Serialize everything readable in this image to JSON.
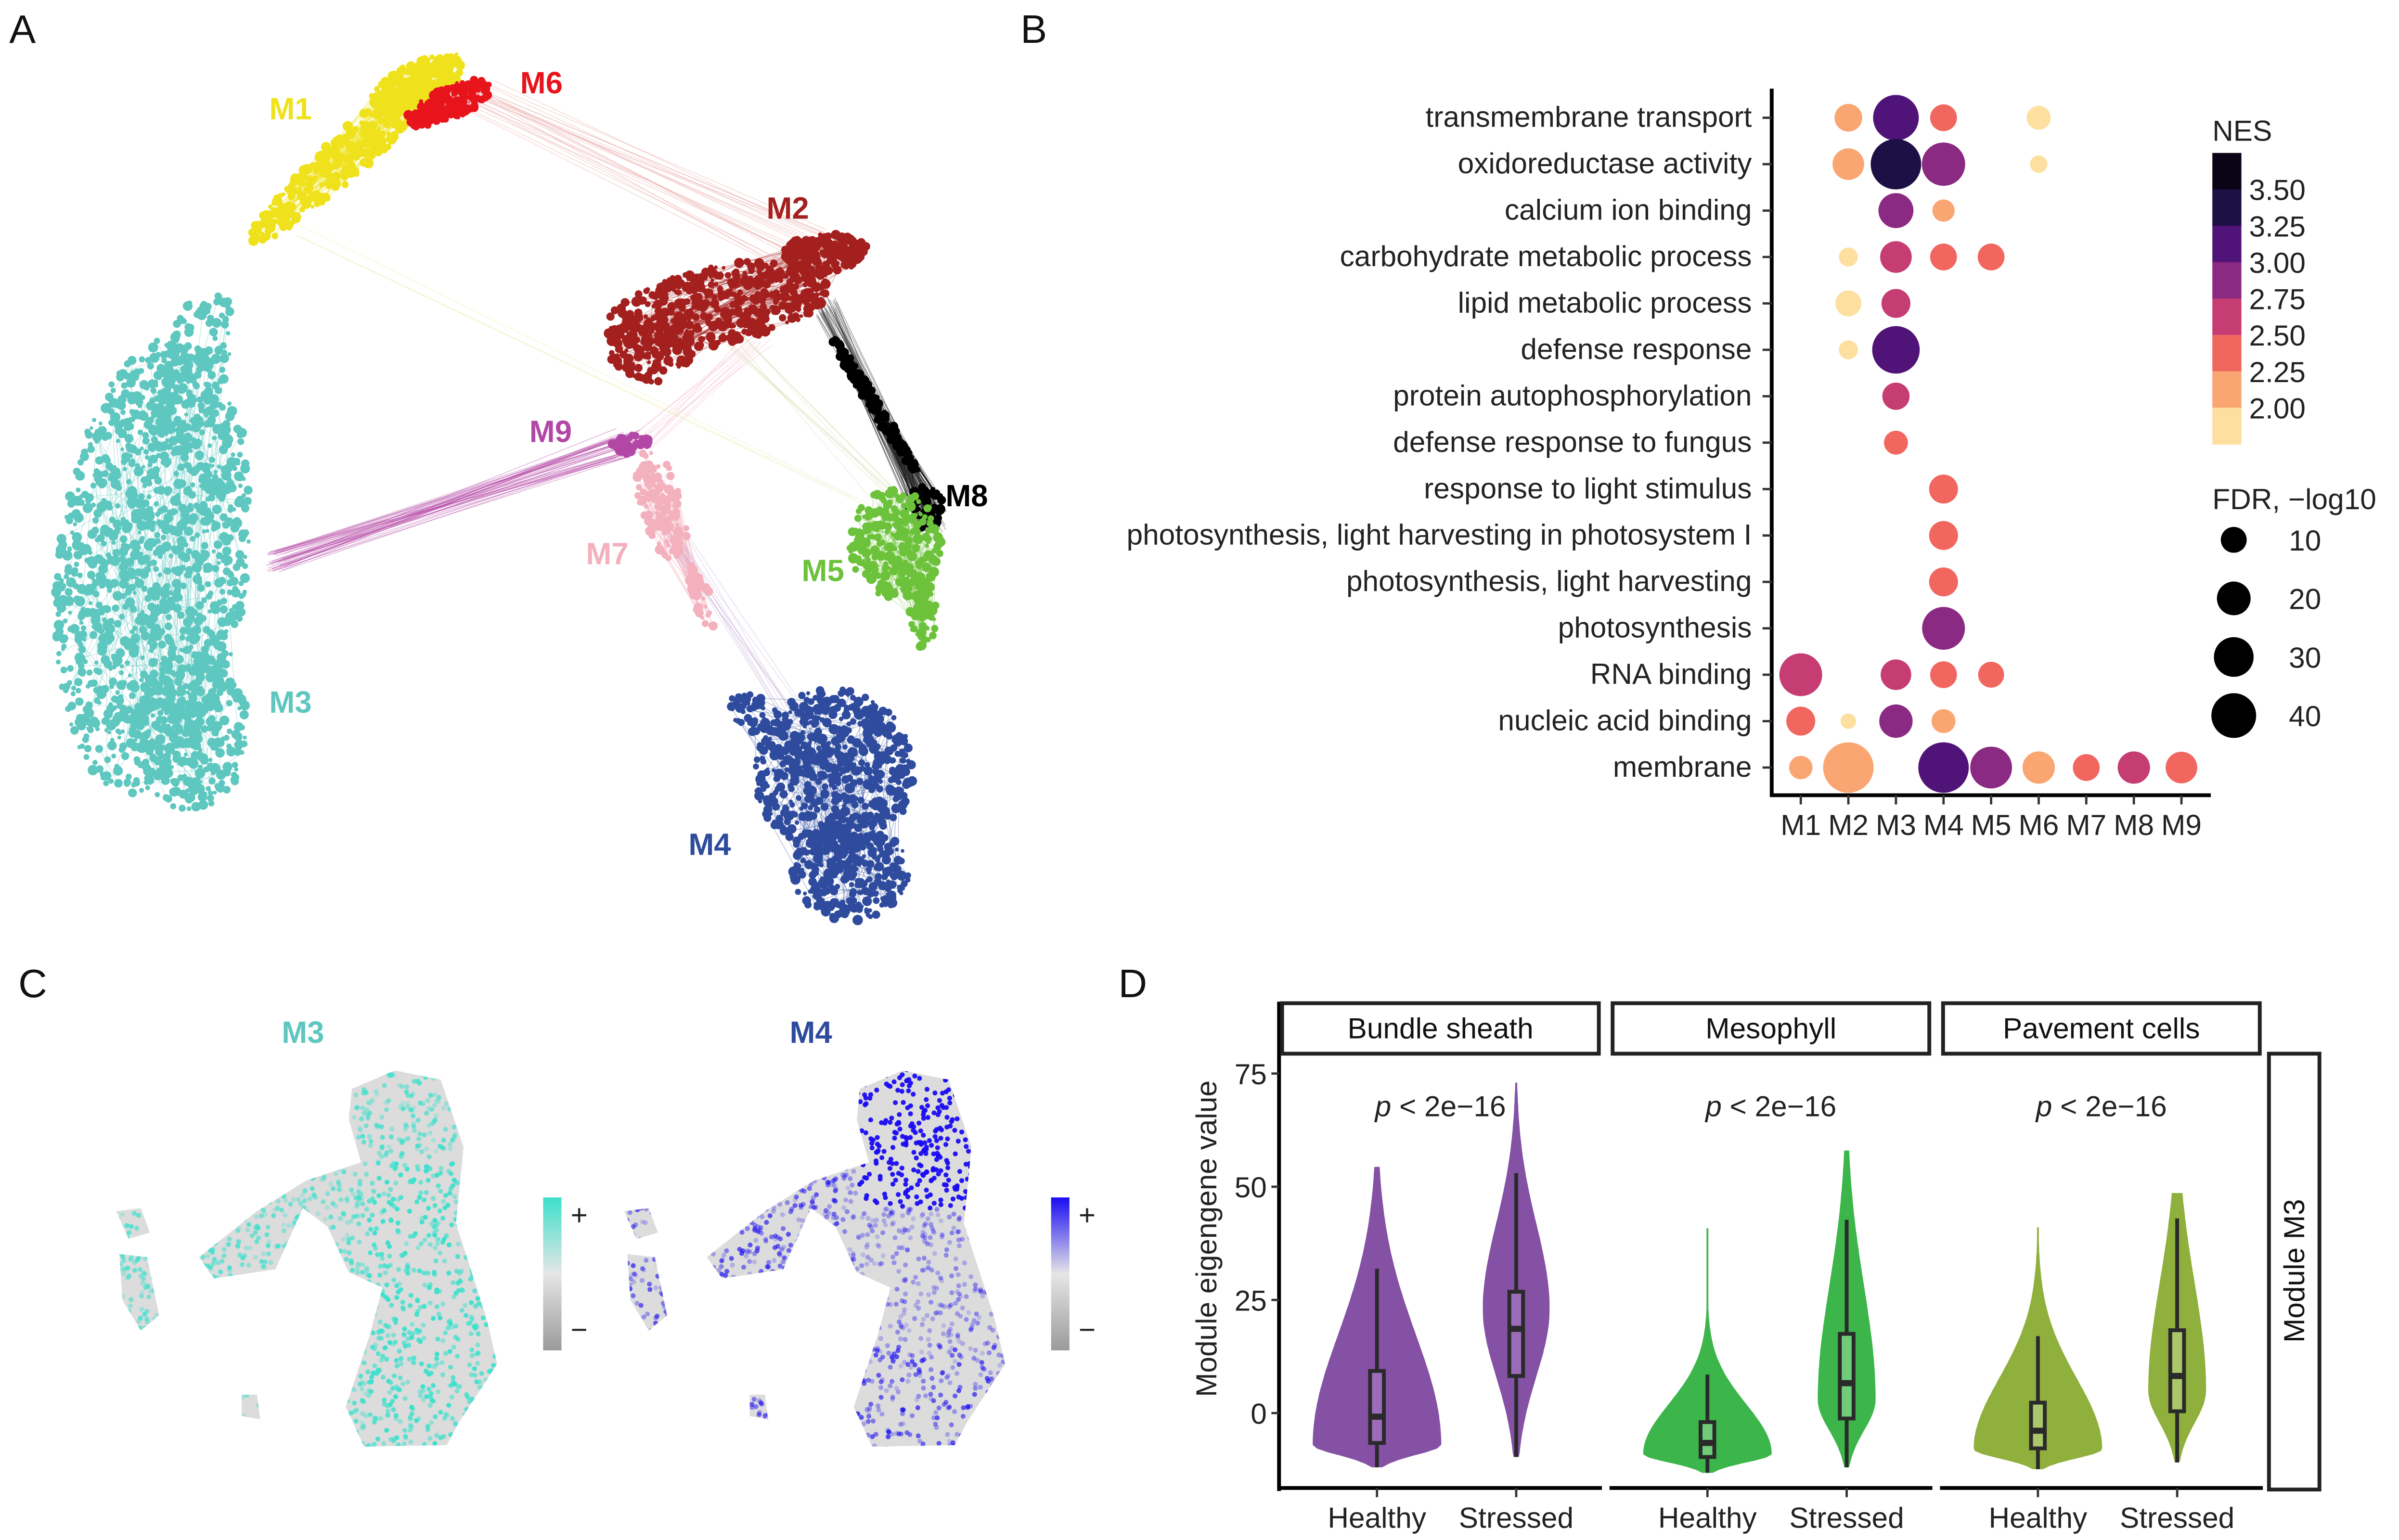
{
  "panels": {
    "a": "A",
    "b": "B",
    "c": "C",
    "d": "D"
  },
  "network": {
    "modules": [
      {
        "name": "M1",
        "color": "#efe21c"
      },
      {
        "name": "M2",
        "color": "#a3201e"
      },
      {
        "name": "M3",
        "color": "#5ec7bf"
      },
      {
        "name": "M4",
        "color": "#2e4b9e"
      },
      {
        "name": "M5",
        "color": "#6cc23a"
      },
      {
        "name": "M6",
        "color": "#e8141c"
      },
      {
        "name": "M7",
        "color": "#f3b0bd"
      },
      {
        "name": "M8",
        "color": "#000000"
      },
      {
        "name": "M9",
        "color": "#b347a6"
      }
    ]
  },
  "umap": {
    "panels": [
      {
        "label": "M3",
        "color": "#3ee0cc",
        "label_color": "#5ec7bf"
      },
      {
        "label": "M4",
        "color": "#1a0cf2",
        "label_color": "#2e4b9e"
      }
    ],
    "plus": "+",
    "minus": "−"
  },
  "chart_data": [
    {
      "type": "scatter",
      "subtype": "dot-plot",
      "terms": [
        "transmembrane transport",
        "oxidoreductase activity",
        "calcium ion binding",
        "carbohydrate metabolic process",
        "lipid metabolic process",
        "defense response",
        "protein autophosphorylation",
        "defense response to fungus",
        "response to light stimulus",
        "photosynthesis, light harvesting in photosystem I",
        "photosynthesis, light harvesting",
        "photosynthesis",
        "RNA binding",
        "nucleic acid binding",
        "membrane"
      ],
      "modules": [
        "M1",
        "M2",
        "M3",
        "M4",
        "M5",
        "M6",
        "M7",
        "M8",
        "M9"
      ],
      "points": [
        {
          "term": 0,
          "module": "M2",
          "nes": 2.2,
          "fdr": 12
        },
        {
          "term": 0,
          "module": "M3",
          "nes": 3.1,
          "fdr": 42
        },
        {
          "term": 0,
          "module": "M4",
          "nes": 2.35,
          "fdr": 11
        },
        {
          "term": 0,
          "module": "M6",
          "nes": 1.9,
          "fdr": 8
        },
        {
          "term": 1,
          "module": "M2",
          "nes": 2.2,
          "fdr": 17
        },
        {
          "term": 1,
          "module": "M3",
          "nes": 3.4,
          "fdr": 53
        },
        {
          "term": 1,
          "module": "M4",
          "nes": 2.9,
          "fdr": 37
        },
        {
          "term": 1,
          "module": "M6",
          "nes": 1.9,
          "fdr": 3
        },
        {
          "term": 2,
          "module": "M3",
          "nes": 2.9,
          "fdr": 22
        },
        {
          "term": 2,
          "module": "M4",
          "nes": 2.2,
          "fdr": 6.5
        },
        {
          "term": 3,
          "module": "M2",
          "nes": 1.9,
          "fdr": 4
        },
        {
          "term": 3,
          "module": "M3",
          "nes": 2.6,
          "fdr": 17
        },
        {
          "term": 3,
          "module": "M4",
          "nes": 2.4,
          "fdr": 11
        },
        {
          "term": 3,
          "module": "M5",
          "nes": 2.4,
          "fdr": 11
        },
        {
          "term": 4,
          "module": "M2",
          "nes": 1.9,
          "fdr": 10
        },
        {
          "term": 4,
          "module": "M3",
          "nes": 2.6,
          "fdr": 13.5
        },
        {
          "term": 5,
          "module": "M2",
          "nes": 1.9,
          "fdr": 4
        },
        {
          "term": 5,
          "module": "M3",
          "nes": 3.1,
          "fdr": 46
        },
        {
          "term": 6,
          "module": "M3",
          "nes": 2.6,
          "fdr": 11.5
        },
        {
          "term": 7,
          "module": "M3",
          "nes": 2.4,
          "fdr": 8
        },
        {
          "term": 8,
          "module": "M4",
          "nes": 2.4,
          "fdr": 13.5
        },
        {
          "term": 9,
          "module": "M4",
          "nes": 2.4,
          "fdr": 13.5
        },
        {
          "term": 10,
          "module": "M4",
          "nes": 2.4,
          "fdr": 13.5
        },
        {
          "term": 11,
          "module": "M4",
          "nes": 2.9,
          "fdr": 36
        },
        {
          "term": 12,
          "module": "M1",
          "nes": 2.6,
          "fdr": 36
        },
        {
          "term": 12,
          "module": "M3",
          "nes": 2.6,
          "fdr": 15.6
        },
        {
          "term": 12,
          "module": "M4",
          "nes": 2.4,
          "fdr": 11
        },
        {
          "term": 12,
          "module": "M5",
          "nes": 2.4,
          "fdr": 10
        },
        {
          "term": 13,
          "module": "M1",
          "nes": 2.4,
          "fdr": 13.5
        },
        {
          "term": 13,
          "module": "M2",
          "nes": 1.9,
          "fdr": 2
        },
        {
          "term": 13,
          "module": "M3",
          "nes": 2.9,
          "fdr": 19.5
        },
        {
          "term": 13,
          "module": "M4",
          "nes": 2.2,
          "fdr": 8
        },
        {
          "term": 14,
          "module": "M1",
          "nes": 2.2,
          "fdr": 7.5
        },
        {
          "term": 14,
          "module": "M2",
          "nes": 2.2,
          "fdr": 53
        },
        {
          "term": 14,
          "module": "M4",
          "nes": 3.1,
          "fdr": 53
        },
        {
          "term": 14,
          "module": "M5",
          "nes": 2.9,
          "fdr": 34
        },
        {
          "term": 14,
          "module": "M6",
          "nes": 2.2,
          "fdr": 18
        },
        {
          "term": 14,
          "module": "M7",
          "nes": 2.4,
          "fdr": 11
        },
        {
          "term": 14,
          "module": "M8",
          "nes": 2.6,
          "fdr": 18
        },
        {
          "term": 14,
          "module": "M9",
          "nes": 2.4,
          "fdr": 17
        }
      ],
      "color_legend": {
        "title": "NES",
        "ticks": [
          "3.50",
          "3.25",
          "3.00",
          "2.75",
          "2.50",
          "2.25",
          "2.00"
        ],
        "bins": [
          {
            "min": 3.5,
            "color": "#0b0417"
          },
          {
            "min": 3.25,
            "color": "#1c1044"
          },
          {
            "min": 3.0,
            "color": "#501479"
          },
          {
            "min": 2.75,
            "color": "#8b2a82"
          },
          {
            "min": 2.5,
            "color": "#c53d73"
          },
          {
            "min": 2.25,
            "color": "#f1675f"
          },
          {
            "min": 2.0,
            "color": "#f9a673"
          },
          {
            "min": 0,
            "color": "#fddf9f"
          }
        ]
      },
      "size_legend": {
        "title": "FDR, −log10",
        "values": [
          10,
          20,
          30,
          40
        ],
        "labels": [
          "10",
          "20",
          "30",
          "40"
        ]
      }
    },
    {
      "type": "violin",
      "facets": [
        "Bundle sheath",
        "Mesophyll",
        "Pavement cells"
      ],
      "row_strip": "Module M3",
      "groups": [
        "Healthy",
        "Stressed"
      ],
      "ylabel": "Module eigengene value",
      "yticks": [
        0,
        25,
        50,
        75
      ],
      "ytick_labels": [
        "0",
        "25",
        "50",
        "75"
      ],
      "ylim": [
        -17,
        78
      ],
      "pvalue_prefix": "p",
      "pvalue_text": " < 2e−16",
      "series": [
        {
          "facet": "Bundle sheath",
          "color": "#8451a4",
          "box_fill": "#9c6cba",
          "groups": [
            {
              "group": "Healthy",
              "min": -12,
              "q1": -6.6,
              "median": -0.8,
              "q3": 9.3,
              "whisker_max": 31.9,
              "max": 54.4,
              "mode": -7,
              "peak": 1.0
            },
            {
              "group": "Stressed",
              "min": -9.7,
              "q1": 8.2,
              "median": 18.6,
              "q3": 26.8,
              "whisker_max": 53,
              "max": 73,
              "mode": 23,
              "peak": 0.52
            }
          ]
        },
        {
          "facet": "Mesophyll",
          "color": "#3cb64a",
          "box_fill": "#6fcc78",
          "groups": [
            {
              "group": "Healthy",
              "min": -13.2,
              "q1": -9.7,
              "median": -6.6,
              "q3": -2,
              "whisker_max": 8.5,
              "max": 40.8,
              "mode": -9,
              "peak": 1.0
            },
            {
              "group": "Stressed",
              "min": -12,
              "q1": -1.2,
              "median": 6.6,
              "q3": 17.5,
              "whisker_max": 42.7,
              "max": 58,
              "mode": 3,
              "peak": 0.45
            }
          ]
        },
        {
          "facet": "Pavement cells",
          "color": "#8fb03c",
          "box_fill": "#aac86a",
          "groups": [
            {
              "group": "Healthy",
              "min": -12.4,
              "q1": -7.8,
              "median": -3.9,
              "q3": 2.3,
              "whisker_max": 17,
              "max": 41,
              "mode": -8,
              "peak": 1.0
            },
            {
              "group": "Stressed",
              "min": -10.9,
              "q1": 0.4,
              "median": 8.2,
              "q3": 18.3,
              "whisker_max": 43,
              "max": 48.6,
              "mode": 5,
              "peak": 0.45
            }
          ]
        }
      ]
    }
  ]
}
